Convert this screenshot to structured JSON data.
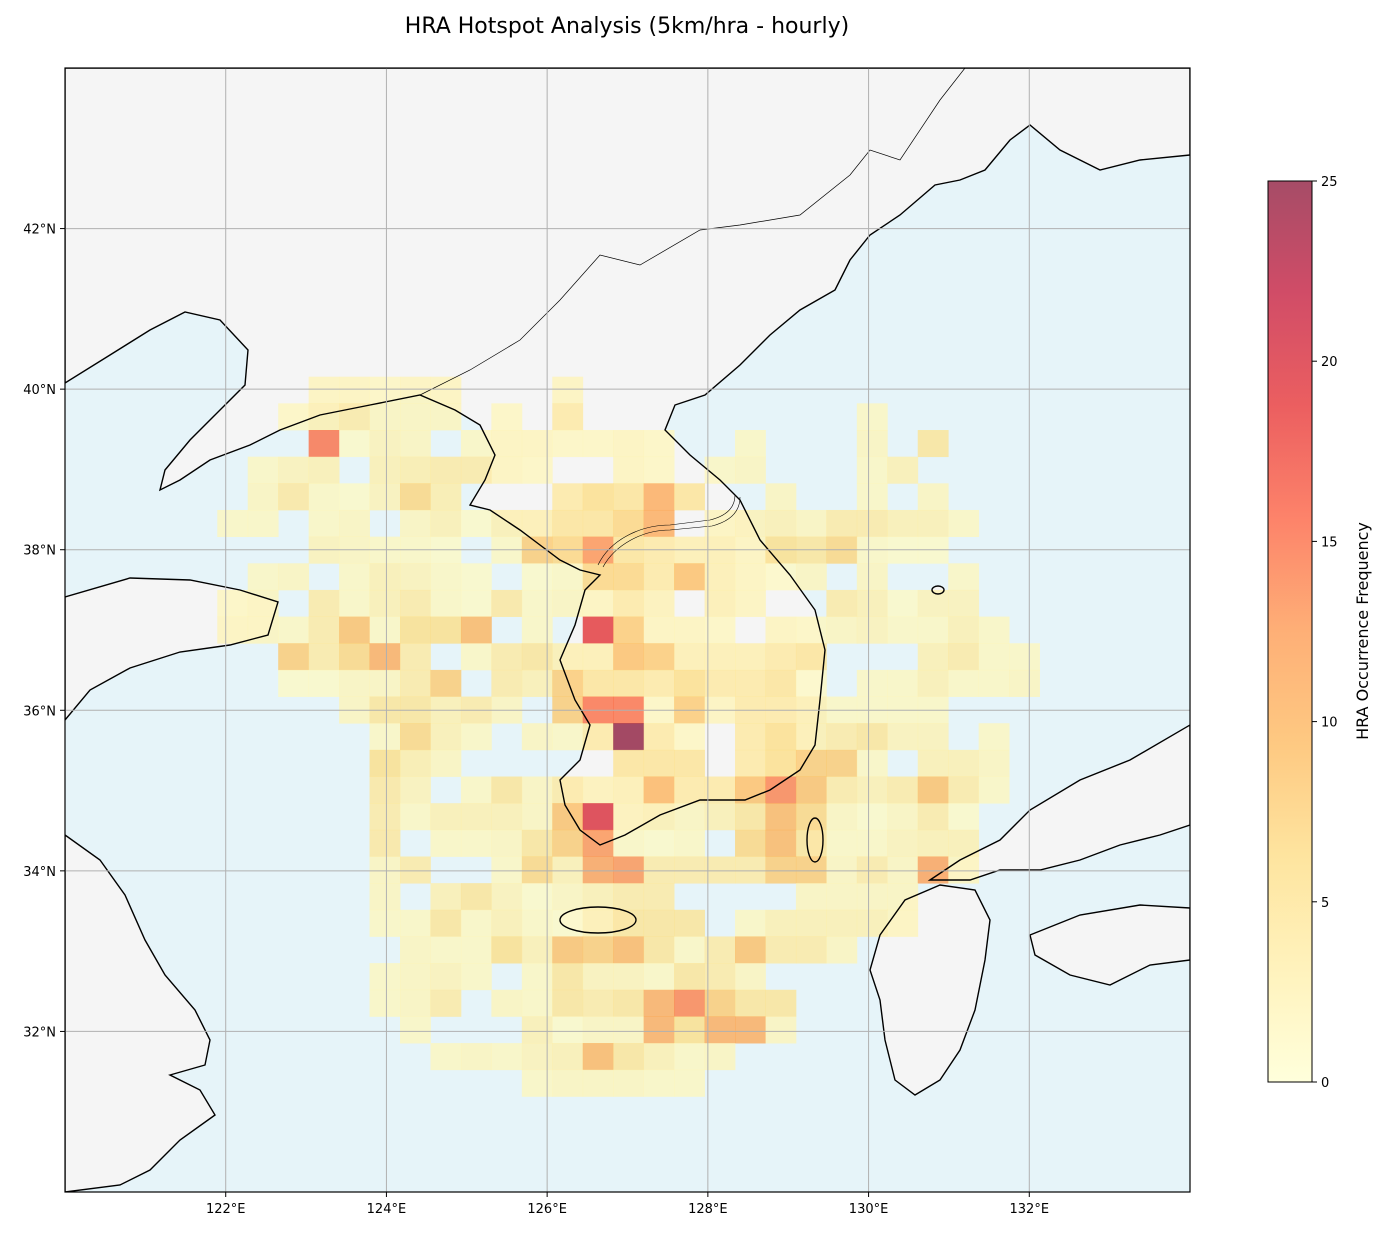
{
  "chart_data": {
    "type": "heatmap",
    "title": "HRA Hotspot Analysis (5km/hra - hourly)",
    "colorbar_label": "HRA Occurrence Frequency",
    "colormap": "YlOrRd",
    "value_range": [
      0,
      25
    ],
    "colorbar_ticks": [
      "0",
      "5",
      "10",
      "15",
      "20",
      "25"
    ],
    "extent": {
      "lon": [
        120,
        134
      ],
      "lat": [
        30,
        44
      ]
    },
    "x_ticks": [
      "122°E",
      "124°E",
      "126°E",
      "128°E",
      "130°E",
      "132°E"
    ],
    "x_tick_values": [
      122,
      124,
      126,
      128,
      130,
      132
    ],
    "y_ticks": [
      "32°N",
      "34°N",
      "36°N",
      "38°N",
      "40°N",
      "42°N"
    ],
    "y_tick_values": [
      32,
      34,
      36,
      38,
      40,
      42
    ],
    "grid": true,
    "legend": "colorbar-right",
    "land_color": "#f5f5f5",
    "sea_color": "#e6f4f9",
    "cell_grid": {
      "lon_start": 121.895,
      "lon_step": 0.379,
      "lat_start": 40.155,
      "lat_step": 0.332
    },
    "rows": [
      {
        "3": 2,
        "4": 2,
        "5": 1.5,
        "6": 2,
        "7": 2,
        "11": 2
      },
      {
        "2": 1.5,
        "3": 3,
        "4": 4,
        "5": 2,
        "6": 2,
        "7": 2,
        "9": 1.5,
        "11": 4,
        "21": 1.5
      },
      {
        "3": 15,
        "4": 1,
        "5": 2.5,
        "6": 2,
        "8": 1.5,
        "9": 2,
        "10": 2,
        "11": 1.5,
        "12": 1.5,
        "13": 2,
        "14": 1.5,
        "17": 1.5,
        "21": 2,
        "23": 5
      },
      {
        "1": 1.5,
        "2": 2.5,
        "3": 3,
        "5": 3,
        "6": 3.5,
        "7": 4,
        "8": 4,
        "9": 2,
        "10": 1.5,
        "13": 2,
        "14": 1.5,
        "16": 1.5,
        "17": 2,
        "21": 1.5,
        "22": 3
      },
      {
        "1": 2,
        "2": 4.5,
        "3": 1.5,
        "4": 1,
        "5": 2.5,
        "6": 7,
        "7": 3.5,
        "11": 4,
        "12": 6,
        "13": 5,
        "14": 11,
        "15": 5,
        "18": 2,
        "21": 1.5,
        "23": 2
      },
      {
        "0": 1.5,
        "1": 1.5,
        "3": 1.5,
        "4": 2,
        "6": 2,
        "7": 3,
        "8": 1,
        "9": 3,
        "10": 3,
        "11": 5,
        "12": 5,
        "13": 7,
        "14": 11,
        "16": 2,
        "17": 2.5,
        "18": 3,
        "19": 2,
        "20": 4,
        "21": 4,
        "22": 3,
        "23": 3,
        "24": 1.5
      },
      {
        "3": 2.5,
        "4": 2,
        "5": 1.5,
        "6": 1.5,
        "7": 1,
        "9": 1.5,
        "10": 8,
        "11": 7,
        "12": 13,
        "13": 5,
        "14": 4,
        "15": 3,
        "16": 3,
        "17": 2,
        "18": 6,
        "19": 5,
        "20": 7,
        "21": 1.5,
        "22": 1,
        "23": 1
      },
      {
        "1": 1.5,
        "2": 2,
        "4": 1.5,
        "5": 3,
        "6": 2.5,
        "7": 1.5,
        "8": 1,
        "10": 1,
        "11": 1.5,
        "12": 7,
        "13": 7,
        "14": 4,
        "15": 9,
        "16": 3,
        "17": 2,
        "18": 1,
        "19": 2,
        "21": 2,
        "24": 1.5
      },
      {
        "0": 1.5,
        "1": 2,
        "3": 4,
        "4": 1.5,
        "5": 3,
        "6": 4,
        "7": 1.5,
        "8": 1,
        "9": 4.5,
        "10": 1.5,
        "11": 2,
        "12": 2,
        "13": 4,
        "14": 2.5,
        "16": 3,
        "17": 2,
        "20": 4,
        "21": 3,
        "22": 1,
        "23": 2.5,
        "24": 2.5
      },
      {
        "0": 2,
        "1": 2,
        "2": 1.5,
        "3": 4,
        "4": 9,
        "5": 1.5,
        "6": 6,
        "7": 6,
        "8": 10,
        "10": 1.5,
        "12": 19,
        "13": 8,
        "14": 2,
        "15": 2,
        "16": 1.5,
        "18": 2,
        "19": 1.5,
        "20": 2,
        "21": 2.5,
        "22": 1.5,
        "23": 1.5,
        "24": 3,
        "25": 1.5
      },
      {
        "2": 8,
        "3": 4,
        "4": 7,
        "5": 11,
        "6": 4,
        "8": 1.5,
        "9": 4,
        "10": 5,
        "11": 3,
        "12": 3,
        "13": 9,
        "14": 8,
        "15": 3,
        "16": 3,
        "17": 3,
        "18": 4,
        "19": 5,
        "23": 3,
        "24": 4,
        "25": 1.5,
        "26": 1.5
      },
      {
        "2": 1,
        "3": 1,
        "4": 2,
        "5": 2,
        "6": 4,
        "7": 8,
        "9": 4,
        "10": 3,
        "11": 8,
        "12": 5,
        "13": 5,
        "14": 4,
        "15": 6,
        "16": 4,
        "17": 4,
        "18": 5,
        "19": 1,
        "21": 1.5,
        "22": 1.5,
        "23": 3,
        "24": 1.5,
        "25": 1.5,
        "26": 2
      },
      {
        "4": 2,
        "5": 5,
        "6": 5,
        "7": 3,
        "8": 4,
        "9": 2,
        "11": 8,
        "12": 15,
        "13": 15,
        "14": 1.5,
        "15": 8,
        "16": 2,
        "17": 4,
        "18": 4,
        "19": 3,
        "20": 1.5,
        "21": 1.5,
        "22": 1.5,
        "23": 1.5
      },
      {
        "5": 1.5,
        "6": 7,
        "7": 3,
        "8": 1.5,
        "10": 2,
        "11": 1.5,
        "12": 4,
        "13": 25,
        "14": 4,
        "15": 1.5,
        "17": 4,
        "18": 6,
        "19": 3,
        "20": 4,
        "21": 5,
        "22": 2.5,
        "23": 2.5,
        "25": 1.5
      },
      {
        "5": 6,
        "6": 3.5,
        "7": 2,
        "13": 5,
        "14": 5,
        "15": 5,
        "17": 4,
        "18": 6,
        "19": 8,
        "20": 8,
        "21": 1.5,
        "23": 3,
        "24": 3,
        "25": 2
      },
      {
        "5": 4.5,
        "6": 2.5,
        "8": 1.5,
        "9": 5,
        "10": 2,
        "11": 4,
        "12": 2.5,
        "13": 3,
        "14": 10,
        "15": 4,
        "16": 4,
        "17": 9,
        "18": 14,
        "19": 9,
        "20": 4,
        "21": 3,
        "22": 4,
        "23": 9,
        "24": 4,
        "25": 1.5
      },
      {
        "5": 4,
        "6": 1.5,
        "7": 3,
        "8": 3,
        "9": 3,
        "10": 2,
        "11": 9,
        "12": 20,
        "13": 2.5,
        "14": 3,
        "15": 2,
        "16": 3,
        "17": 5,
        "18": 10,
        "19": 7,
        "20": 2,
        "21": 1,
        "22": 2,
        "23": 4,
        "24": 1
      },
      {
        "5": 4.5,
        "7": 1.5,
        "8": 1.5,
        "9": 2,
        "10": 5,
        "11": 8,
        "12": 13,
        "13": 1.5,
        "14": 1,
        "15": 1.5,
        "17": 7,
        "18": 10,
        "19": 5,
        "20": 1.5,
        "21": 1.5,
        "22": 2.5,
        "23": 3,
        "24": 3
      },
      {
        "5": 2,
        "6": 4,
        "9": 1.5,
        "10": 7,
        "11": 3,
        "12": 12,
        "13": 13,
        "14": 4,
        "15": 4,
        "16": 4,
        "17": 4,
        "18": 8,
        "19": 8,
        "20": 2,
        "21": 4,
        "22": 2,
        "23": 12,
        "24": 2
      },
      {
        "5": 2,
        "7": 3,
        "8": 5,
        "9": 2.5,
        "10": 1,
        "11": 2,
        "12": 3,
        "13": 4,
        "14": 4,
        "19": 2,
        "20": 2,
        "21": 2,
        "22": 2
      },
      {
        "5": 1.5,
        "6": 1.5,
        "7": 5,
        "8": 1.5,
        "9": 3,
        "10": 1.5,
        "11": 1,
        "12": 3,
        "13": 5,
        "14": 5,
        "15": 5,
        "17": 1.5,
        "18": 3,
        "19": 3,
        "20": 3,
        "21": 3,
        "22": 2
      },
      {
        "6": 2,
        "7": 1.5,
        "8": 1.5,
        "9": 6,
        "10": 3,
        "11": 9,
        "12": 8,
        "13": 10,
        "14": 5,
        "15": 1.5,
        "16": 4,
        "17": 9,
        "18": 4,
        "19": 4,
        "20": 2
      },
      {
        "5": 1.5,
        "6": 2,
        "7": 2.5,
        "8": 1.5,
        "10": 1.5,
        "11": 5,
        "12": 2.5,
        "13": 2.5,
        "14": 1.5,
        "15": 5,
        "16": 4,
        "17": 2
      },
      {
        "5": 1.5,
        "6": 2,
        "7": 4,
        "9": 2,
        "10": 1.5,
        "11": 5,
        "12": 4,
        "13": 5,
        "14": 11,
        "15": 14,
        "16": 8,
        "17": 5,
        "18": 5
      },
      {
        "6": 1.5,
        "10": 3,
        "11": 1,
        "12": 2,
        "13": 2,
        "14": 11,
        "15": 6,
        "16": 11,
        "17": 11,
        "18": 2
      },
      {
        "7": 1.5,
        "8": 2,
        "9": 1.5,
        "10": 2.5,
        "11": 3,
        "12": 10,
        "13": 5,
        "14": 3,
        "15": 1.5,
        "16": 2
      },
      {
        "10": 1.5,
        "11": 2,
        "12": 2,
        "13": 2,
        "14": 1.5,
        "15": 1.5
      }
    ]
  }
}
